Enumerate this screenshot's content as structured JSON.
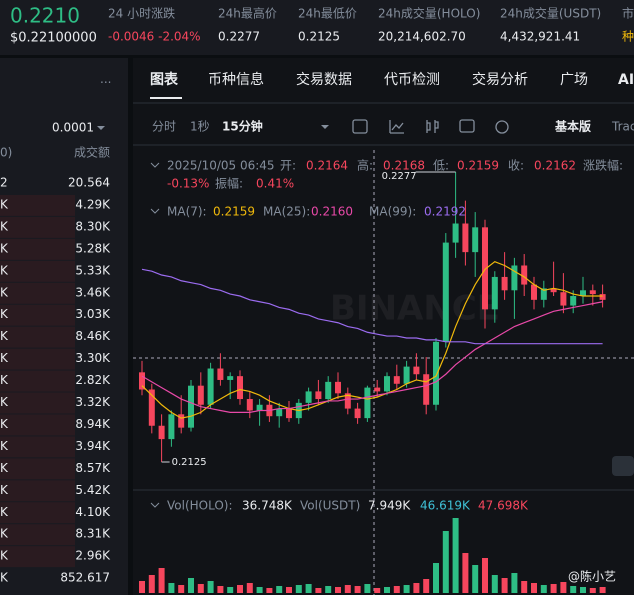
{
  "header": {
    "price": "0.2210",
    "price_usd": "$0.22100000",
    "stats": [
      {
        "label": "24 小时涨跌",
        "value": "-0.0046 -2.04%"
      },
      {
        "label": "24h最高价",
        "value": "0.2277"
      },
      {
        "label": "24h最低价",
        "value": "0.2125"
      },
      {
        "label": "24h成交量(HOLO)",
        "value": "20,214,602.70"
      },
      {
        "label": "24h成交量(USDT)",
        "value": "4,432,921.41"
      },
      {
        "label": "市",
        "value": "种"
      }
    ]
  },
  "order_book": {
    "menu": "···",
    "step": "0.0001",
    "header_left": "0)",
    "header_right": "成交额",
    "rows": [
      [
        "2",
        "20.564"
      ],
      [
        "K",
        "4.29K"
      ],
      [
        "K",
        "8.30K"
      ],
      [
        "K",
        "5.28K"
      ],
      [
        "K",
        "5.33K"
      ],
      [
        "K",
        "3.46K"
      ],
      [
        "K",
        "3.03K"
      ],
      [
        "K",
        "8.46K"
      ],
      [
        "K",
        "3.30K"
      ],
      [
        "K",
        "2.82K"
      ],
      [
        "K",
        "3.32K"
      ],
      [
        "K",
        "8.94K"
      ],
      [
        "K",
        "3.94K"
      ],
      [
        "K",
        "8.57K"
      ],
      [
        "K",
        "5.42K"
      ],
      [
        "K",
        "4.10K"
      ],
      [
        "K",
        "8.31K"
      ],
      [
        "K",
        "2.96K"
      ],
      [
        "K",
        "852.617"
      ]
    ]
  },
  "chart_panel": {
    "tabs": [
      "图表",
      "币种信息",
      "交易数据",
      "代币检测",
      "交易分析",
      "广场",
      "AI"
    ],
    "intervals": [
      "分时",
      "1秒",
      "15分钟"
    ],
    "mode": "基本版",
    "mode_cut": "Trac",
    "info": {
      "time": "2025/10/05 06:45",
      "open_label": "开:",
      "open": "0.2164",
      "high_label": "高:",
      "high": "0.2168",
      "low_label": "低:",
      "low": "0.2159",
      "close_label": "收:",
      "close": "0.2162",
      "change_label": "涨跌幅:",
      "change": "-0.13%",
      "amp_label": "振幅:",
      "amp": "0.41%"
    },
    "ma": [
      {
        "label": "MA(7):",
        "value": "0.2159",
        "color": "#f0b90b"
      },
      {
        "label": "MA(25):",
        "value": "0.2160",
        "color": "#e849a8"
      },
      {
        "label": "MA(99):",
        "value": "0.2192",
        "color": "#9b6cf0"
      }
    ],
    "vol": {
      "holo_label": "Vol(HOLO):",
      "holo": "36.748K",
      "usdt_label": "Vol(USDT)",
      "usdt": "7.949K",
      "ma1": "46.619K",
      "ma2": "47.698K"
    },
    "watermark": "BINANCE",
    "user_mark": "@陈小艺",
    "kline": {
      "type": "candlestick",
      "high_marker": 0.2277,
      "low_marker": 0.2125,
      "up_color": "#2ebd85",
      "down_color": "#f6465d",
      "ohlc": [
        [
          0.2172,
          0.2178,
          0.216,
          0.2163
        ],
        [
          0.2163,
          0.2166,
          0.214,
          0.2144
        ],
        [
          0.2144,
          0.215,
          0.2125,
          0.2137
        ],
        [
          0.2137,
          0.2152,
          0.2133,
          0.215
        ],
        [
          0.215,
          0.216,
          0.214,
          0.2143
        ],
        [
          0.2143,
          0.2168,
          0.2141,
          0.2165
        ],
        [
          0.2165,
          0.2172,
          0.215,
          0.2155
        ],
        [
          0.2155,
          0.2177,
          0.2153,
          0.2174
        ],
        [
          0.2174,
          0.2182,
          0.2165,
          0.2168
        ],
        [
          0.2168,
          0.2172,
          0.2158,
          0.217
        ],
        [
          0.217,
          0.2173,
          0.2155,
          0.2158
        ],
        [
          0.2158,
          0.2162,
          0.2148,
          0.2152
        ],
        [
          0.2152,
          0.2158,
          0.2144,
          0.2155
        ],
        [
          0.2155,
          0.216,
          0.2146,
          0.2149
        ],
        [
          0.2149,
          0.2156,
          0.2143,
          0.2153
        ],
        [
          0.2153,
          0.2157,
          0.2146,
          0.2148
        ],
        [
          0.2148,
          0.2158,
          0.2145,
          0.2156
        ],
        [
          0.2156,
          0.2164,
          0.2152,
          0.2162
        ],
        [
          0.2162,
          0.2168,
          0.2155,
          0.2158
        ],
        [
          0.2158,
          0.217,
          0.2156,
          0.2167
        ],
        [
          0.2167,
          0.2172,
          0.2158,
          0.2161
        ],
        [
          0.2161,
          0.2164,
          0.215,
          0.2153
        ],
        [
          0.2153,
          0.2156,
          0.2145,
          0.2148
        ],
        [
          0.2148,
          0.2165,
          0.2146,
          0.2164
        ],
        [
          0.2164,
          0.2168,
          0.2159,
          0.2162
        ],
        [
          0.2162,
          0.2172,
          0.216,
          0.217
        ],
        [
          0.217,
          0.2176,
          0.2163,
          0.2166
        ],
        [
          0.2166,
          0.2178,
          0.2164,
          0.2175
        ],
        [
          0.2175,
          0.2182,
          0.2168,
          0.2171
        ],
        [
          0.2171,
          0.218,
          0.215,
          0.2155
        ],
        [
          0.2155,
          0.219,
          0.2152,
          0.2188
        ],
        [
          0.2188,
          0.2245,
          0.2185,
          0.224
        ],
        [
          0.224,
          0.2277,
          0.2232,
          0.225
        ],
        [
          0.225,
          0.2262,
          0.2228,
          0.2235
        ],
        [
          0.2235,
          0.2256,
          0.2222,
          0.2248
        ],
        [
          0.2248,
          0.2252,
          0.2195,
          0.2205
        ],
        [
          0.2205,
          0.2225,
          0.2198,
          0.2222
        ],
        [
          0.2222,
          0.2235,
          0.221,
          0.2215
        ],
        [
          0.2215,
          0.2232,
          0.22,
          0.2228
        ],
        [
          0.2228,
          0.2234,
          0.2212,
          0.2218
        ],
        [
          0.2218,
          0.2222,
          0.2205,
          0.221
        ],
        [
          0.221,
          0.222,
          0.2206,
          0.2216
        ],
        [
          0.2216,
          0.223,
          0.2212,
          0.2214
        ],
        [
          0.2214,
          0.2224,
          0.2203,
          0.2207
        ],
        [
          0.2207,
          0.2215,
          0.2203,
          0.2212
        ],
        [
          0.2212,
          0.2222,
          0.2208,
          0.2215
        ],
        [
          0.2215,
          0.2218,
          0.2207,
          0.2213
        ],
        [
          0.2213,
          0.2218,
          0.2206,
          0.221
        ]
      ],
      "volume": [
        12,
        18,
        25,
        10,
        8,
        15,
        9,
        12,
        7,
        6,
        8,
        10,
        6,
        5,
        7,
        6,
        8,
        9,
        5,
        7,
        6,
        8,
        7,
        9,
        5,
        6,
        7,
        8,
        10,
        14,
        30,
        62,
        75,
        40,
        28,
        35,
        18,
        15,
        20,
        12,
        10,
        8,
        9,
        11,
        7,
        6,
        5,
        6
      ],
      "ma7": [
        0.2165,
        0.216,
        0.2155,
        0.2151,
        0.2148,
        0.2149,
        0.2151,
        0.2155,
        0.2158,
        0.2161,
        0.2163,
        0.2162,
        0.216,
        0.2157,
        0.2155,
        0.2153,
        0.2152,
        0.2153,
        0.2155,
        0.2157,
        0.2159,
        0.216,
        0.2159,
        0.2158,
        0.2159,
        0.2161,
        0.2163,
        0.2166,
        0.2168,
        0.2167,
        0.217,
        0.2182,
        0.2196,
        0.2208,
        0.2218,
        0.2226,
        0.223,
        0.2228,
        0.2225,
        0.2222,
        0.2218,
        0.2215,
        0.2216,
        0.2215,
        0.2213,
        0.2212,
        0.2212,
        0.2212
      ],
      "ma25": [
        0.217,
        0.2167,
        0.2164,
        0.2161,
        0.2158,
        0.2156,
        0.2154,
        0.2153,
        0.2152,
        0.2151,
        0.2151,
        0.2151,
        0.2152,
        0.2152,
        0.2153,
        0.2153,
        0.2154,
        0.2155,
        0.2156,
        0.2157,
        0.2157,
        0.2158,
        0.2158,
        0.2159,
        0.216,
        0.2161,
        0.2162,
        0.2163,
        0.2164,
        0.2165,
        0.2167,
        0.2171,
        0.2176,
        0.218,
        0.2184,
        0.2187,
        0.219,
        0.2193,
        0.2196,
        0.2198,
        0.22,
        0.2202,
        0.2204,
        0.2205,
        0.2206,
        0.2207,
        0.2208,
        0.2209
      ],
      "ma99": [
        0.2226,
        0.2225,
        0.2223,
        0.2222,
        0.222,
        0.2219,
        0.2218,
        0.2216,
        0.2215,
        0.2213,
        0.2212,
        0.221,
        0.2209,
        0.2208,
        0.2206,
        0.2205,
        0.2203,
        0.2202,
        0.22,
        0.2199,
        0.2198,
        0.2196,
        0.2195,
        0.2193,
        0.2192,
        0.2191,
        0.2191,
        0.219,
        0.219,
        0.2189,
        0.2189,
        0.2188,
        0.2188,
        0.2188,
        0.2187,
        0.2187,
        0.2187,
        0.2187,
        0.2187,
        0.2187,
        0.2187,
        0.2187,
        0.2187,
        0.2187,
        0.2187,
        0.2187,
        0.2187,
        0.2187
      ]
    }
  }
}
